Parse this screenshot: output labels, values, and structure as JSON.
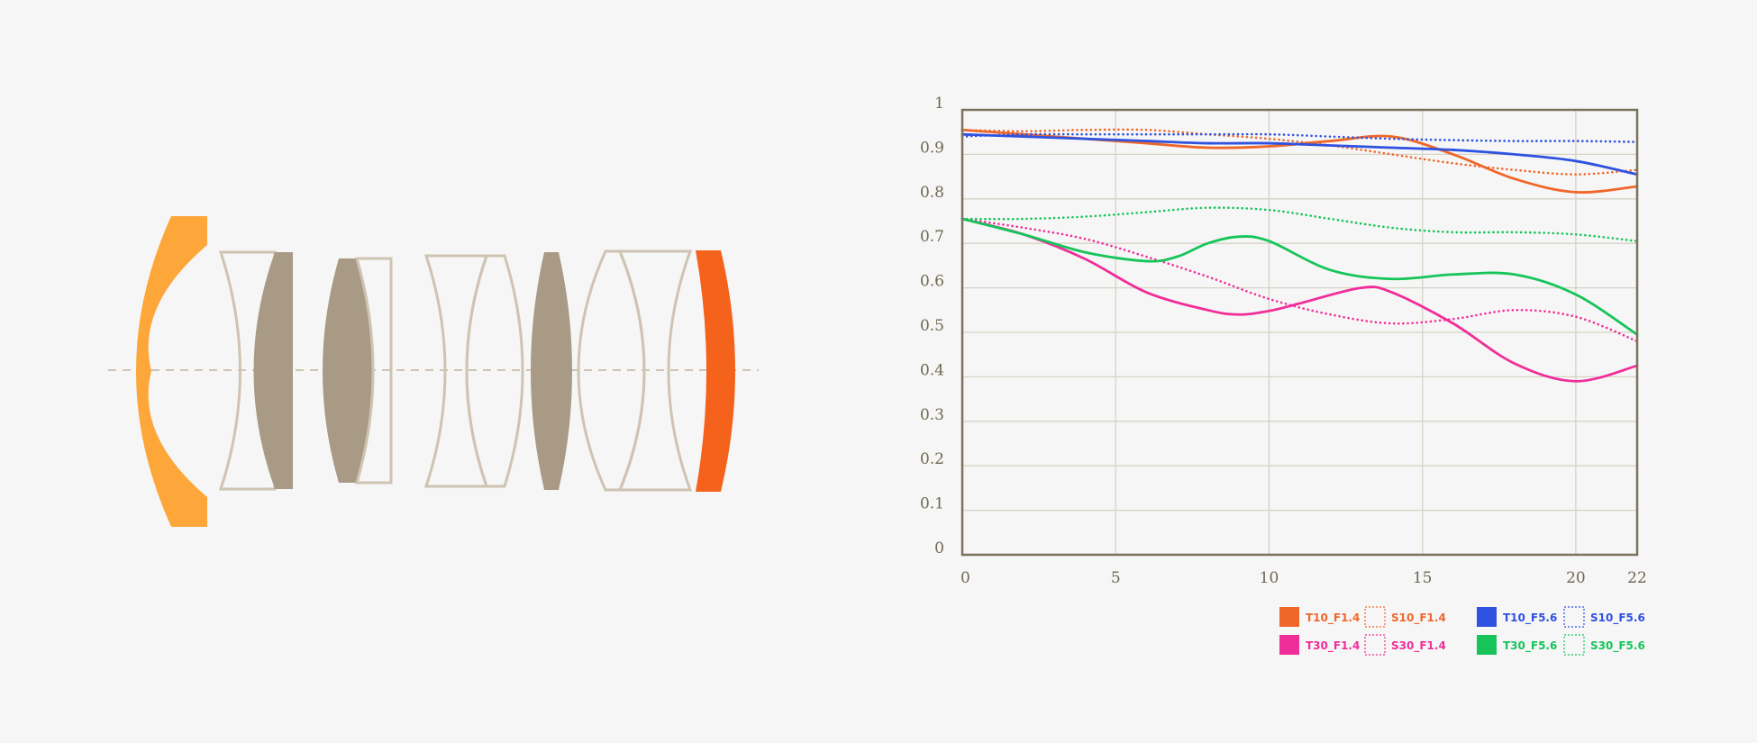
{
  "colors": {
    "background": "#f6f6f6",
    "axis": "#7a725c",
    "grid": "#d6d2c6",
    "lens_outline": "#cfc3b2",
    "lens_fill": "#a89a85",
    "front_element": "#fda63a",
    "rear_element": "#f4621c"
  },
  "diagram": {
    "elements": [
      {
        "name": "front-meniscus",
        "style": "solid-orange"
      },
      {
        "name": "group-1",
        "style": "outline-plus-filled"
      },
      {
        "name": "group-2",
        "style": "filled-plus-outline"
      },
      {
        "name": "group-3",
        "style": "outline-pair"
      },
      {
        "name": "group-4",
        "style": "filled-biconvex"
      },
      {
        "name": "group-5",
        "style": "outline-pair"
      },
      {
        "name": "rear-element",
        "style": "solid-red-orange"
      }
    ],
    "optical_axis": "dashed"
  },
  "chart_data": {
    "type": "line",
    "xlim": [
      0,
      22
    ],
    "ylim": [
      0,
      1
    ],
    "x_ticks": [
      0,
      5,
      10,
      15,
      20,
      22
    ],
    "y_ticks": [
      0,
      0.1,
      0.2,
      0.3,
      0.4,
      0.5,
      0.6,
      0.7,
      0.8,
      0.9,
      1
    ],
    "grid": true,
    "legend_position": "bottom-right",
    "series": [
      {
        "name": "T10_F1.4",
        "color": "#f0672a",
        "style": "solid",
        "x": [
          0,
          2,
          4,
          6,
          8,
          10,
          12,
          14,
          16,
          18,
          20,
          22
        ],
        "y": [
          0.955,
          0.945,
          0.935,
          0.925,
          0.915,
          0.918,
          0.93,
          0.94,
          0.9,
          0.845,
          0.815,
          0.828
        ]
      },
      {
        "name": "S10_F1.4",
        "color": "#f0672a",
        "style": "dotted",
        "x": [
          0,
          2,
          4,
          6,
          8,
          10,
          12,
          14,
          16,
          18,
          20,
          22
        ],
        "y": [
          0.955,
          0.952,
          0.955,
          0.955,
          0.945,
          0.935,
          0.92,
          0.9,
          0.88,
          0.865,
          0.855,
          0.865
        ]
      },
      {
        "name": "T30_F1.4",
        "color": "#f02e99",
        "style": "solid",
        "x": [
          0,
          2,
          4,
          6,
          8,
          9,
          10,
          11,
          13,
          14,
          16,
          18,
          20,
          22
        ],
        "y": [
          0.755,
          0.72,
          0.665,
          0.59,
          0.55,
          0.54,
          0.548,
          0.565,
          0.6,
          0.59,
          0.52,
          0.43,
          0.39,
          0.425
        ]
      },
      {
        "name": "S30_F1.4",
        "color": "#f02e99",
        "style": "dotted",
        "x": [
          0,
          2,
          4,
          6,
          8,
          10,
          12,
          14,
          16,
          18,
          20,
          22
        ],
        "y": [
          0.755,
          0.735,
          0.71,
          0.67,
          0.625,
          0.575,
          0.54,
          0.52,
          0.53,
          0.55,
          0.535,
          0.48
        ]
      },
      {
        "name": "T10_F5.6",
        "color": "#2f52e0",
        "style": "solid",
        "x": [
          0,
          2,
          4,
          6,
          8,
          10,
          12,
          14,
          16,
          18,
          20,
          22
        ],
        "y": [
          0.945,
          0.94,
          0.935,
          0.93,
          0.925,
          0.925,
          0.92,
          0.915,
          0.91,
          0.9,
          0.885,
          0.855
        ]
      },
      {
        "name": "S10_F5.6",
        "color": "#2f52e0",
        "style": "dotted",
        "x": [
          0,
          2,
          4,
          6,
          8,
          10,
          12,
          14,
          16,
          18,
          20,
          22
        ],
        "y": [
          0.94,
          0.945,
          0.945,
          0.945,
          0.945,
          0.945,
          0.94,
          0.935,
          0.932,
          0.93,
          0.93,
          0.928
        ]
      },
      {
        "name": "T30_F5.6",
        "color": "#16c45a",
        "style": "solid",
        "x": [
          0,
          2,
          4,
          6,
          7,
          8,
          9,
          10,
          12,
          14,
          16,
          18,
          20,
          22
        ],
        "y": [
          0.755,
          0.72,
          0.68,
          0.66,
          0.67,
          0.7,
          0.715,
          0.705,
          0.64,
          0.62,
          0.63,
          0.63,
          0.585,
          0.495
        ]
      },
      {
        "name": "S30_F5.6",
        "color": "#16c45a",
        "style": "dotted",
        "x": [
          0,
          2,
          4,
          6,
          8,
          10,
          12,
          14,
          16,
          18,
          20,
          22
        ],
        "y": [
          0.755,
          0.755,
          0.76,
          0.77,
          0.78,
          0.775,
          0.755,
          0.735,
          0.725,
          0.725,
          0.72,
          0.705
        ]
      }
    ]
  }
}
